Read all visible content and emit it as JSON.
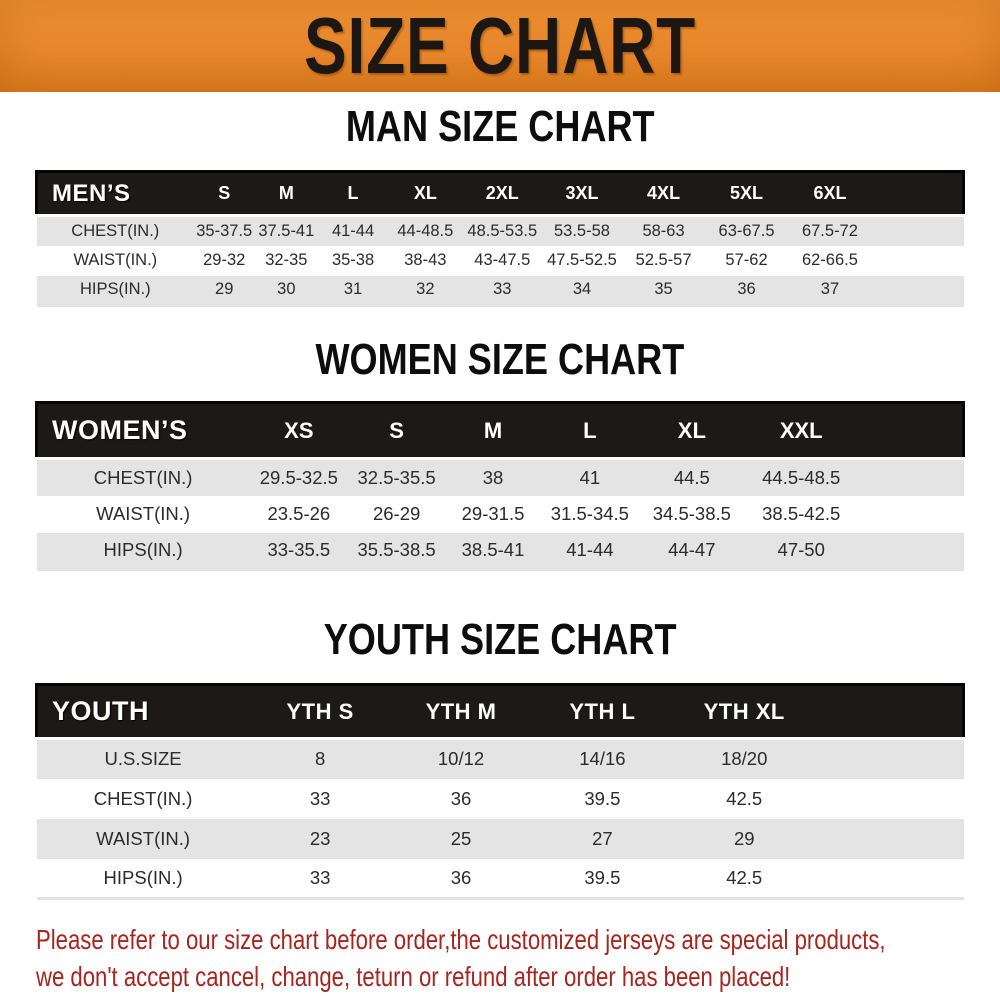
{
  "banner": {
    "title": "SIZE CHART",
    "bg_color": "#E8872B",
    "text_color": "#1C1712"
  },
  "sections": {
    "men": {
      "heading": "MAN SIZE CHART",
      "corner_label": "MEN’S",
      "columns": [
        "S",
        "M",
        "L",
        "XL",
        "2XL",
        "3XL",
        "4XL",
        "5XL",
        "6XL"
      ],
      "rows": [
        {
          "label": "CHEST(IN.)",
          "values": [
            "35-37.5",
            "37.5-41",
            "41-44",
            "44-48.5",
            "48.5-53.5",
            "53.5-58",
            "58-63",
            "63-67.5",
            "67.5-72"
          ]
        },
        {
          "label": "WAIST(IN.)",
          "values": [
            "29-32",
            "32-35",
            "35-38",
            "38-43",
            "43-47.5",
            "47.5-52.5",
            "52.5-57",
            "57-62",
            "62-66.5"
          ]
        },
        {
          "label": "HIPS(IN.)",
          "values": [
            "29",
            "30",
            "31",
            "32",
            "33",
            "34",
            "35",
            "36",
            "37"
          ]
        }
      ]
    },
    "women": {
      "heading": "WOMEN SIZE CHART",
      "corner_label": "WOMEN’S",
      "columns": [
        "XS",
        "S",
        "M",
        "L",
        "XL",
        "XXL"
      ],
      "rows": [
        {
          "label": "CHEST(IN.)",
          "values": [
            "29.5-32.5",
            "32.5-35.5",
            "38",
            "41",
            "44.5",
            "44.5-48.5"
          ]
        },
        {
          "label": "WAIST(IN.)",
          "values": [
            "23.5-26",
            "26-29",
            "29-31.5",
            "31.5-34.5",
            "34.5-38.5",
            "38.5-42.5"
          ]
        },
        {
          "label": "HIPS(IN.)",
          "values": [
            "33-35.5",
            "35.5-38.5",
            "38.5-41",
            "41-44",
            "44-47",
            "47-50"
          ]
        }
      ]
    },
    "youth": {
      "heading": "YOUTH SIZE CHART",
      "corner_label": "YOUTH",
      "columns": [
        "YTH S",
        "YTH M",
        "YTH L",
        "YTH XL"
      ],
      "rows": [
        {
          "label": "U.S.SIZE",
          "values": [
            "8",
            "10/12",
            "14/16",
            "18/20"
          ]
        },
        {
          "label": "CHEST(IN.)",
          "values": [
            "33",
            "36",
            "39.5",
            "42.5"
          ]
        },
        {
          "label": "WAIST(IN.)",
          "values": [
            "23",
            "25",
            "27",
            "29"
          ]
        },
        {
          "label": "HIPS(IN.)",
          "values": [
            "33",
            "36",
            "39.5",
            "42.5"
          ]
        }
      ]
    }
  },
  "footer": {
    "line1": "Please refer to our size chart before order,the customized jerseys are special products,",
    "line2": "we don't accept cancel, change, teturn or refund after order has been placed!",
    "text_color": "#A8251E"
  }
}
